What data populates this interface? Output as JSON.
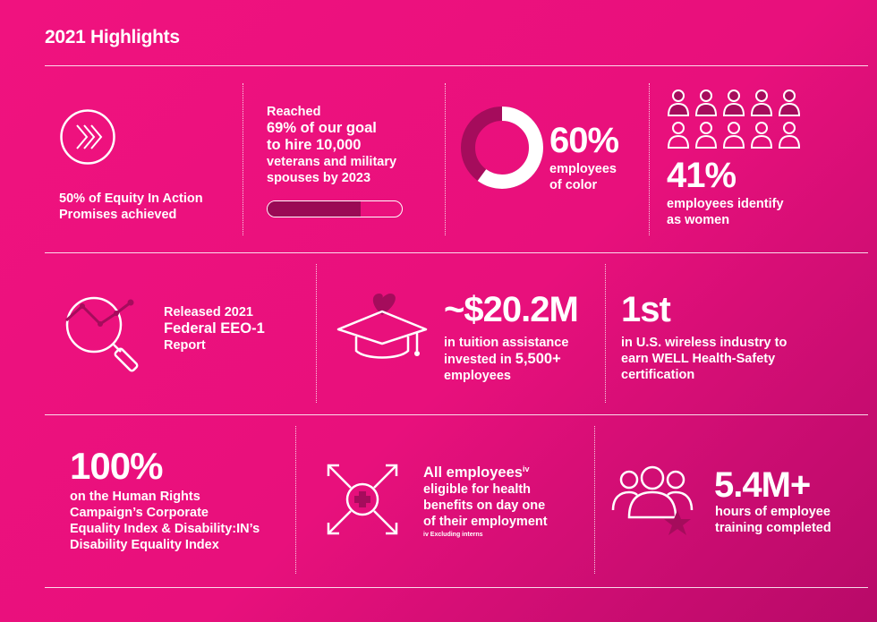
{
  "title": "2021 Highlights",
  "colors": {
    "background": "#e8107c",
    "accent_dark": "#9a0a55",
    "text": "#ffffff"
  },
  "row1": {
    "equity": {
      "icon": "chevrons-circle-icon",
      "text": "50% of Equity In Action Promises achieved"
    },
    "veterans": {
      "line1": "Reached",
      "bold1": "69% of our goal",
      "bold2": "to hire 10,000",
      "line2": "veterans and military",
      "line3": "spouses by 2023",
      "progress": 0.69
    },
    "color": {
      "icon": "donut-chart-icon",
      "value": "60%",
      "label1": "employees",
      "label2": "of color",
      "fraction": 0.6
    },
    "women": {
      "icon": "people-grid-icon",
      "value": "41%",
      "label1": "employees identify",
      "label2": "as women"
    }
  },
  "row2": {
    "eeo": {
      "icon": "magnifier-chart-icon",
      "line1": "Released 2021",
      "bold": "Federal EEO-1",
      "line2": "Report"
    },
    "tuition": {
      "icon": "graduation-cap-heart-icon",
      "value": "~$20.2M",
      "line1": "in tuition assistance",
      "line2a": "invested in ",
      "line2b": "5,500+",
      "line3": "employees"
    },
    "well": {
      "value": "1st",
      "line1": "in U.S. wireless industry to",
      "line2": "earn WELL Health-Safety",
      "line3": "certification"
    }
  },
  "row3": {
    "hrc": {
      "value": "100%",
      "line1": "on the Human Rights",
      "line2": "Campaign’s Corporate",
      "line3": "Equality Index & Disability:IN’s",
      "line4": "Disability Equality Index"
    },
    "benefits": {
      "icon": "health-cross-arrows-icon",
      "bold": "All employees",
      "sup": "iv",
      "line1": "eligible for health",
      "line2": "benefits on day one",
      "line3": "of their employment",
      "note": "iv Excluding interns"
    },
    "training": {
      "icon": "group-star-icon",
      "value": "5.4M+",
      "line1": "hours of employee",
      "line2": "training completed"
    }
  }
}
